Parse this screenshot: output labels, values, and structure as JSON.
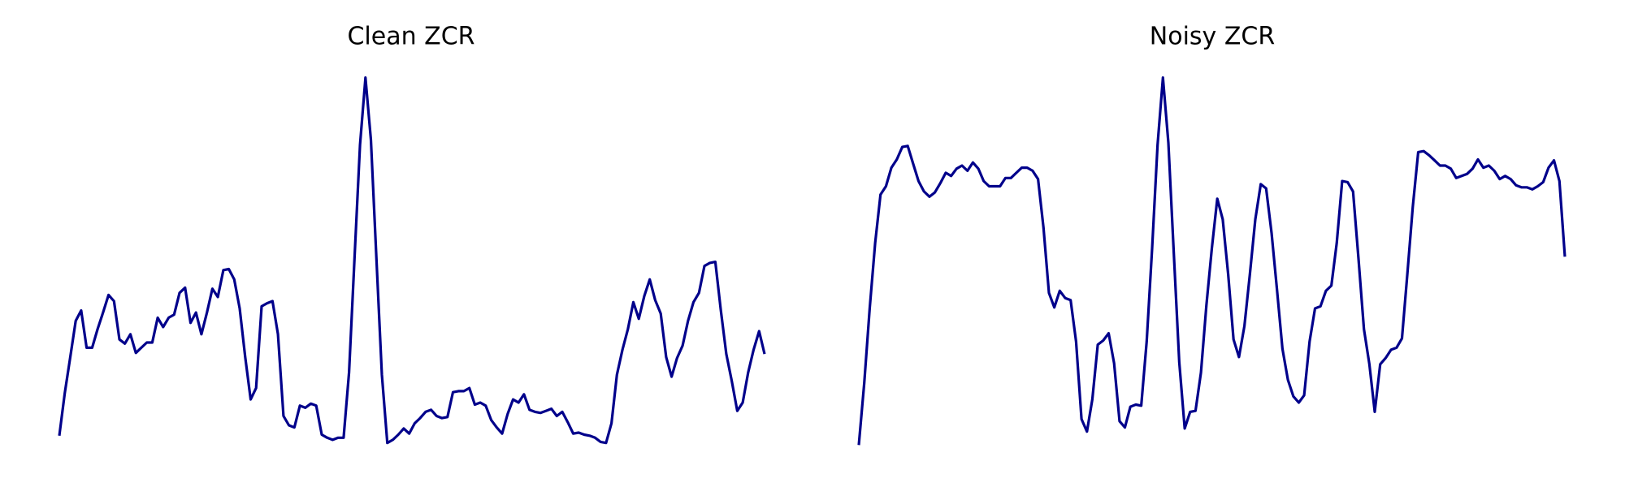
{
  "chart_data": [
    {
      "type": "line",
      "title": "Clean ZCR",
      "ylim": [
        0,
        400
      ],
      "series": [
        {
          "color": "#00008b",
          "values": [
            19,
            60,
            95,
            130,
            140,
            104,
            104,
            122,
            138,
            155,
            149,
            112,
            108,
            117,
            99,
            104,
            109,
            109,
            133,
            124,
            133,
            136,
            157,
            162,
            128,
            138,
            117,
            138,
            161,
            153,
            179,
            180,
            170,
            142,
            95,
            54,
            65,
            144,
            147,
            149,
            117,
            38,
            29,
            27,
            48,
            46,
            50,
            48,
            20,
            17,
            15,
            17,
            17,
            80,
            190,
            300,
            365,
            305,
            190,
            78,
            12,
            15,
            20,
            26,
            21,
            31,
            36,
            42,
            44,
            38,
            36,
            37,
            61,
            62,
            62,
            65,
            49,
            51,
            48,
            34,
            27,
            21,
            40,
            54,
            51,
            59,
            44,
            42,
            41,
            43,
            45,
            38,
            42,
            32,
            21,
            22,
            20,
            19,
            17,
            13,
            12,
            31,
            78,
            102,
            122,
            148,
            132,
            154,
            170,
            150,
            137,
            95,
            76,
            94,
            106,
            130,
            148,
            157,
            183,
            186,
            187,
            140,
            98,
            72,
            43,
            51,
            80,
            102,
            120,
            98
          ]
        }
      ]
    },
    {
      "type": "line",
      "title": "Noisy ZCR",
      "ylim": [
        0,
        400
      ],
      "series": [
        {
          "color": "#00008b",
          "values": [
            10,
            70,
            142,
            205,
            252,
            260,
            278,
            286,
            298,
            299,
            282,
            265,
            255,
            250,
            254,
            263,
            273,
            270,
            277,
            280,
            275,
            283,
            277,
            265,
            260,
            260,
            260,
            268,
            268,
            273,
            278,
            278,
            275,
            267,
            220,
            157,
            143,
            159,
            152,
            150,
            110,
            35,
            23,
            54,
            107,
            111,
            118,
            89,
            33,
            27,
            47,
            49,
            48,
            110,
            200,
            300,
            365,
            302,
            195,
            90,
            26,
            42,
            43,
            80,
            145,
            200,
            248,
            228,
            175,
            112,
            95,
            125,
            175,
            228,
            262,
            258,
            215,
            160,
            103,
            73,
            57,
            51,
            58,
            110,
            142,
            144,
            159,
            164,
            205,
            265,
            264,
            255,
            190,
            122,
            88,
            42,
            88,
            94,
            102,
            104,
            113,
            175,
            240,
            293,
            294,
            290,
            285,
            280,
            280,
            277,
            268,
            270,
            272,
            277,
            286,
            278,
            280,
            275,
            267,
            270,
            267,
            261,
            259,
            259,
            257,
            260,
            264,
            278,
            285,
            265,
            192
          ]
        }
      ]
    }
  ]
}
